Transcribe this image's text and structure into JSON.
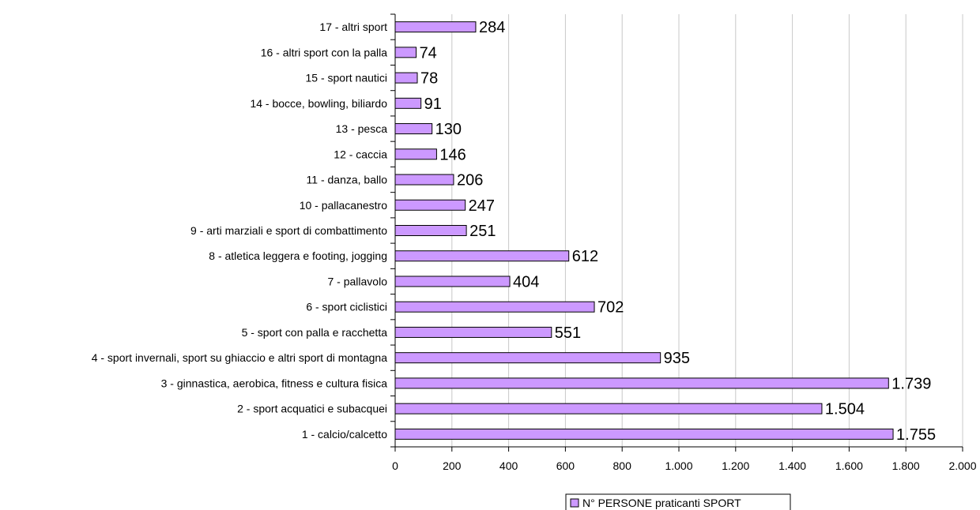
{
  "chart_data": {
    "type": "bar",
    "orientation": "horizontal",
    "categories": [
      "1 - calcio/calcetto",
      "2 - sport acquatici e subacquei",
      "3 - ginnastica, aerobica, fitness e cultura fisica",
      "4 - sport invernali, sport su ghiaccio e altri sport di montagna",
      "5 - sport con palla e racchetta",
      "6 - sport ciclistici",
      "7 - pallavolo",
      "8 - atletica leggera e footing, jogging",
      "9 - arti marziali e sport di combattimento",
      "10 - pallacanestro",
      "11 - danza, ballo",
      "12 - caccia",
      "13 - pesca",
      "14 - bocce, bowling, biliardo",
      "15 - sport nautici",
      "16 - altri sport con la palla",
      "17 - altri sport"
    ],
    "series": [
      {
        "name": "N° PERSONE praticanti SPORT",
        "color": "#cc99ff",
        "values": [
          1755,
          1504,
          1739,
          935,
          551,
          702,
          404,
          612,
          251,
          247,
          206,
          146,
          130,
          91,
          78,
          74,
          284
        ],
        "labels": [
          "1.755",
          "1.504",
          "1.739",
          "935",
          "551",
          "702",
          "404",
          "612",
          "251",
          "247",
          "206",
          "146",
          "130",
          "91",
          "78",
          "74",
          "284"
        ]
      }
    ],
    "xlim": [
      0,
      2000
    ],
    "xticks": [
      0,
      200,
      400,
      600,
      800,
      1000,
      1200,
      1400,
      1600,
      1800,
      2000
    ],
    "xtick_labels": [
      "0",
      "200",
      "400",
      "600",
      "800",
      "1.000",
      "1.200",
      "1.400",
      "1.600",
      "1.800",
      "2.000"
    ],
    "grid": "vertical",
    "legend": "bottom"
  }
}
